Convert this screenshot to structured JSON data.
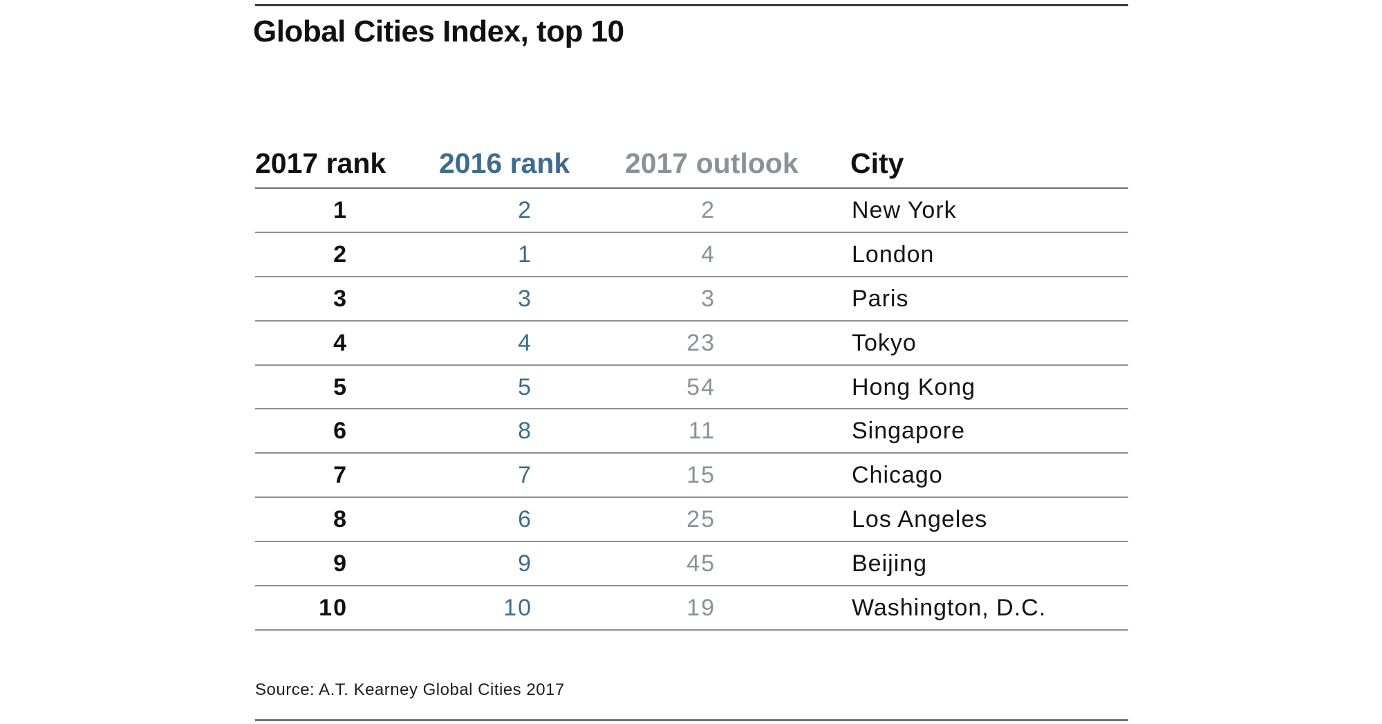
{
  "title": "Global Cities Index, top 10",
  "source_note": "Source: A.T. Kearney Global Cities 2017",
  "colors": {
    "text_primary": "#111111",
    "rank_2016_blue": "#3e6c8e",
    "outlook_2017_gray": "#8a9199",
    "row_separator": "#8f8f8f",
    "header_rule": "#6e6e6e",
    "top_rule": "#3a3a3a",
    "bottom_rule": "#707070",
    "background": "#ffffff"
  },
  "table": {
    "headers": [
      {
        "label": "2017 rank"
      },
      {
        "label": "2016 rank"
      },
      {
        "label": "2017 outlook"
      },
      {
        "label": "City"
      }
    ],
    "rows": [
      {
        "rank2017": "1",
        "rank2016": "2",
        "outlook2017": "2",
        "city": "New York"
      },
      {
        "rank2017": "2",
        "rank2016": "1",
        "outlook2017": "4",
        "city": "London"
      },
      {
        "rank2017": "3",
        "rank2016": "3",
        "outlook2017": "3",
        "city": "Paris"
      },
      {
        "rank2017": "4",
        "rank2016": "4",
        "outlook2017": "23",
        "city": "Tokyo"
      },
      {
        "rank2017": "5",
        "rank2016": "5",
        "outlook2017": "54",
        "city": "Hong Kong"
      },
      {
        "rank2017": "6",
        "rank2016": "8",
        "outlook2017": "11",
        "city": "Singapore"
      },
      {
        "rank2017": "7",
        "rank2016": "7",
        "outlook2017": "15",
        "city": "Chicago"
      },
      {
        "rank2017": "8",
        "rank2016": "6",
        "outlook2017": "25",
        "city": "Los Angeles"
      },
      {
        "rank2017": "9",
        "rank2016": "9",
        "outlook2017": "45",
        "city": "Beijing"
      },
      {
        "rank2017": "10",
        "rank2016": "10",
        "outlook2017": "19",
        "city": "Washington, D.C."
      }
    ]
  },
  "chart_data": {
    "type": "table",
    "title": "Global Cities Index, top 10",
    "columns": [
      "2017 rank",
      "2016 rank",
      "2017 outlook",
      "City"
    ],
    "rows": [
      [
        1,
        2,
        2,
        "New York"
      ],
      [
        2,
        1,
        4,
        "London"
      ],
      [
        3,
        3,
        3,
        "Paris"
      ],
      [
        4,
        4,
        23,
        "Tokyo"
      ],
      [
        5,
        5,
        54,
        "Hong Kong"
      ],
      [
        6,
        8,
        11,
        "Singapore"
      ],
      [
        7,
        7,
        15,
        "Chicago"
      ],
      [
        8,
        6,
        25,
        "Los Angeles"
      ],
      [
        9,
        9,
        45,
        "Beijing"
      ],
      [
        10,
        10,
        19,
        "Washington, D.C."
      ]
    ],
    "source": "Source: A.T. Kearney Global Cities 2017",
    "layout": {
      "grid": "horizontal rules only",
      "rank_2017_style": "bold black, right-aligned",
      "rank_2016_style": "steel blue, right-aligned",
      "outlook_2017_style": "gray, right-aligned",
      "city_style": "regular black, left-aligned"
    }
  }
}
